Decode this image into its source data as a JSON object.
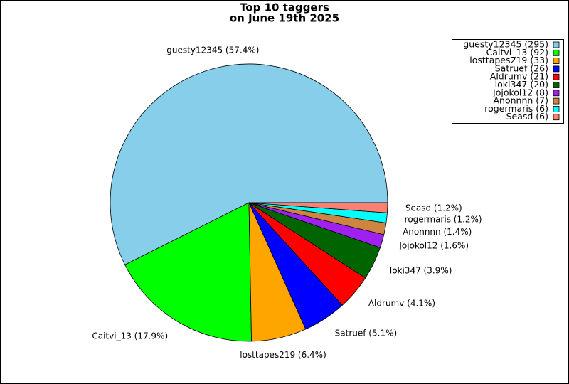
{
  "chart_data": {
    "type": "pie",
    "title": "Top 10 taggers",
    "subtitle": "on June 19th 2025",
    "values": [
      295,
      92,
      33,
      26,
      21,
      20,
      8,
      7,
      6,
      6
    ],
    "labels": [
      "guesty12345 (57.4%)",
      "Caitvi_13 (17.9%)",
      "losttapes219 (6.4%)",
      "Satruef (5.1%)",
      "Aldrumv (4.1%)",
      "loki347 (3.9%)",
      "Jojokol12 (1.6%)",
      "Anonnnn (1.4%)",
      "rogermaris (1.2%)",
      "Seasd (1.2%)"
    ],
    "legend_labels": [
      "guesty12345 (295)",
      "Caitvi_13 (92)",
      "losttapes219 (33)",
      "Satruef (26)",
      "Aldrumv (21)",
      "loki347 (20)",
      "Jojokol12 (8)",
      "Anonnnn (7)",
      "rogermaris (6)",
      "Seasd (6)"
    ],
    "colors": [
      "#87ceeb",
      "#00ff00",
      "#ffa500",
      "#0000ff",
      "#ff0000",
      "#006400",
      "#a020f0",
      "#cd853f",
      "#00ffff",
      "#fa8072"
    ],
    "legend": "top-right"
  }
}
